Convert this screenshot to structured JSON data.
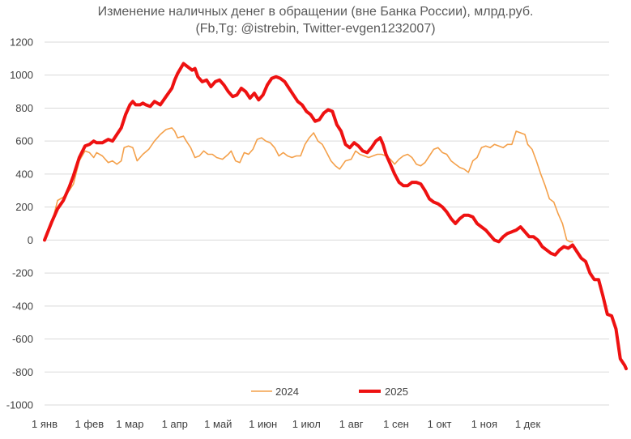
{
  "chart_data": {
    "type": "line",
    "title": "Изменение наличных денег в обращении (вне Банка России), млрд.руб.",
    "subtitle": "(Fb,Tg: @istrebin, Twitter-evgen1232007)",
    "xlabel": "",
    "ylabel": "",
    "ylim": [
      -1000,
      1200
    ],
    "yticks": [
      "1200",
      "1000",
      "800",
      "600",
      "400",
      "200",
      "0",
      "-200",
      "-400",
      "-600",
      "-800",
      "-1000"
    ],
    "xtick_labels": [
      "1 янв",
      "1 фев",
      "1 мар",
      "1 апр",
      "1 май",
      "1 июн",
      "1 июл",
      "1 авг",
      "1 сен",
      "1 окт",
      "1 ноя",
      "1 дек"
    ],
    "xtick_days": [
      0,
      31,
      59,
      90,
      120,
      151,
      181,
      212,
      243,
      273,
      304,
      334
    ],
    "xlim_days": [
      0,
      365
    ],
    "grid": "horizontal",
    "legend_position": "bottom",
    "series": [
      {
        "name": "2024",
        "color": "#F4A04A",
        "line_width": "thin",
        "points": [
          [
            0,
            0
          ],
          [
            5,
            100
          ],
          [
            9,
            240
          ],
          [
            13,
            260
          ],
          [
            17,
            300
          ],
          [
            20,
            340
          ],
          [
            24,
            480
          ],
          [
            28,
            540
          ],
          [
            31,
            530
          ],
          [
            34,
            500
          ],
          [
            36,
            530
          ],
          [
            40,
            510
          ],
          [
            44,
            470
          ],
          [
            47,
            480
          ],
          [
            50,
            460
          ],
          [
            53,
            480
          ],
          [
            55,
            560
          ],
          [
            58,
            570
          ],
          [
            61,
            560
          ],
          [
            64,
            480
          ],
          [
            66,
            500
          ],
          [
            68,
            520
          ],
          [
            72,
            550
          ],
          [
            76,
            600
          ],
          [
            80,
            640
          ],
          [
            84,
            670
          ],
          [
            88,
            680
          ],
          [
            90,
            660
          ],
          [
            92,
            620
          ],
          [
            96,
            630
          ],
          [
            98,
            600
          ],
          [
            101,
            560
          ],
          [
            104,
            500
          ],
          [
            107,
            510
          ],
          [
            110,
            540
          ],
          [
            113,
            520
          ],
          [
            116,
            520
          ],
          [
            119,
            500
          ],
          [
            123,
            490
          ],
          [
            127,
            520
          ],
          [
            129,
            540
          ],
          [
            132,
            480
          ],
          [
            135,
            470
          ],
          [
            138,
            530
          ],
          [
            141,
            520
          ],
          [
            144,
            550
          ],
          [
            147,
            610
          ],
          [
            150,
            620
          ],
          [
            153,
            600
          ],
          [
            156,
            590
          ],
          [
            159,
            560
          ],
          [
            162,
            510
          ],
          [
            165,
            530
          ],
          [
            168,
            510
          ],
          [
            171,
            500
          ],
          [
            174,
            510
          ],
          [
            177,
            510
          ],
          [
            180,
            580
          ],
          [
            183,
            620
          ],
          [
            186,
            650
          ],
          [
            189,
            600
          ],
          [
            192,
            580
          ],
          [
            195,
            530
          ],
          [
            198,
            480
          ],
          [
            201,
            450
          ],
          [
            204,
            430
          ],
          [
            208,
            480
          ],
          [
            212,
            490
          ],
          [
            215,
            540
          ],
          [
            218,
            520
          ],
          [
            221,
            510
          ],
          [
            224,
            500
          ],
          [
            227,
            510
          ],
          [
            230,
            520
          ],
          [
            233,
            520
          ],
          [
            236,
            510
          ],
          [
            239,
            490
          ],
          [
            242,
            460
          ],
          [
            245,
            490
          ],
          [
            248,
            510
          ],
          [
            251,
            520
          ],
          [
            254,
            500
          ],
          [
            257,
            460
          ],
          [
            260,
            450
          ],
          [
            263,
            470
          ],
          [
            266,
            510
          ],
          [
            269,
            550
          ],
          [
            272,
            560
          ],
          [
            275,
            530
          ],
          [
            278,
            520
          ],
          [
            281,
            480
          ],
          [
            284,
            460
          ],
          [
            287,
            440
          ],
          [
            290,
            430
          ],
          [
            293,
            410
          ],
          [
            296,
            480
          ],
          [
            299,
            500
          ],
          [
            302,
            560
          ],
          [
            305,
            570
          ],
          [
            308,
            560
          ],
          [
            311,
            580
          ],
          [
            314,
            570
          ],
          [
            317,
            560
          ],
          [
            320,
            580
          ],
          [
            323,
            580
          ],
          [
            326,
            660
          ],
          [
            329,
            650
          ],
          [
            332,
            640
          ],
          [
            334,
            580
          ],
          [
            337,
            550
          ],
          [
            340,
            480
          ],
          [
            343,
            400
          ],
          [
            346,
            330
          ],
          [
            349,
            250
          ],
          [
            352,
            230
          ],
          [
            355,
            160
          ],
          [
            358,
            100
          ],
          [
            361,
            0
          ],
          [
            363,
            -10
          ],
          [
            365,
            -10
          ]
        ]
      },
      {
        "name": "2025",
        "color": "#EE1111",
        "line_width": "thick",
        "points": [
          [
            0,
            0
          ],
          [
            5,
            110
          ],
          [
            9,
            190
          ],
          [
            13,
            240
          ],
          [
            17,
            320
          ],
          [
            20,
            390
          ],
          [
            24,
            500
          ],
          [
            28,
            570
          ],
          [
            31,
            580
          ],
          [
            34,
            600
          ],
          [
            36,
            590
          ],
          [
            40,
            590
          ],
          [
            44,
            610
          ],
          [
            47,
            600
          ],
          [
            50,
            640
          ],
          [
            53,
            680
          ],
          [
            56,
            760
          ],
          [
            59,
            820
          ],
          [
            61,
            840
          ],
          [
            63,
            820
          ],
          [
            66,
            820
          ],
          [
            68,
            830
          ],
          [
            70,
            820
          ],
          [
            73,
            810
          ],
          [
            76,
            840
          ],
          [
            80,
            820
          ],
          [
            84,
            870
          ],
          [
            88,
            920
          ],
          [
            90,
            970
          ],
          [
            92,
            1010
          ],
          [
            96,
            1070
          ],
          [
            99,
            1050
          ],
          [
            102,
            1030
          ],
          [
            104,
            1040
          ],
          [
            106,
            990
          ],
          [
            109,
            960
          ],
          [
            112,
            970
          ],
          [
            115,
            930
          ],
          [
            118,
            960
          ],
          [
            121,
            970
          ],
          [
            124,
            940
          ],
          [
            127,
            900
          ],
          [
            130,
            870
          ],
          [
            133,
            880
          ],
          [
            136,
            920
          ],
          [
            139,
            900
          ],
          [
            142,
            860
          ],
          [
            145,
            890
          ],
          [
            148,
            850
          ],
          [
            151,
            880
          ],
          [
            154,
            940
          ],
          [
            157,
            980
          ],
          [
            160,
            990
          ],
          [
            163,
            980
          ],
          [
            166,
            960
          ],
          [
            169,
            920
          ],
          [
            172,
            880
          ],
          [
            175,
            840
          ],
          [
            178,
            820
          ],
          [
            181,
            780
          ],
          [
            184,
            760
          ],
          [
            187,
            720
          ],
          [
            190,
            730
          ],
          [
            193,
            770
          ],
          [
            196,
            790
          ],
          [
            199,
            780
          ],
          [
            202,
            700
          ],
          [
            205,
            660
          ],
          [
            208,
            580
          ],
          [
            211,
            560
          ],
          [
            214,
            590
          ],
          [
            217,
            570
          ],
          [
            220,
            540
          ],
          [
            223,
            530
          ],
          [
            226,
            560
          ],
          [
            229,
            600
          ],
          [
            232,
            620
          ],
          [
            234,
            580
          ],
          [
            236,
            520
          ],
          [
            239,
            460
          ],
          [
            242,
            400
          ],
          [
            245,
            350
          ],
          [
            248,
            330
          ],
          [
            251,
            330
          ],
          [
            254,
            350
          ],
          [
            257,
            350
          ],
          [
            260,
            340
          ],
          [
            263,
            300
          ],
          [
            266,
            250
          ],
          [
            269,
            230
          ],
          [
            272,
            220
          ],
          [
            275,
            200
          ],
          [
            278,
            170
          ],
          [
            281,
            130
          ],
          [
            284,
            100
          ],
          [
            287,
            130
          ],
          [
            290,
            150
          ],
          [
            293,
            150
          ],
          [
            296,
            140
          ],
          [
            299,
            100
          ],
          [
            302,
            80
          ],
          [
            305,
            60
          ],
          [
            308,
            30
          ],
          [
            311,
            0
          ],
          [
            314,
            -10
          ],
          [
            317,
            20
          ],
          [
            320,
            40
          ],
          [
            323,
            50
          ],
          [
            326,
            60
          ],
          [
            329,
            80
          ],
          [
            332,
            50
          ],
          [
            335,
            20
          ],
          [
            338,
            20
          ],
          [
            341,
            0
          ],
          [
            344,
            -40
          ],
          [
            347,
            -60
          ],
          [
            350,
            -80
          ],
          [
            353,
            -90
          ],
          [
            356,
            -60
          ],
          [
            359,
            -40
          ],
          [
            362,
            -50
          ],
          [
            365,
            -30
          ],
          [
            368,
            -70
          ],
          [
            371,
            -110
          ],
          [
            374,
            -130
          ],
          [
            377,
            -200
          ],
          [
            380,
            -240
          ],
          [
            383,
            -240
          ],
          [
            386,
            -340
          ],
          [
            389,
            -450
          ],
          [
            392,
            -460
          ],
          [
            395,
            -540
          ],
          [
            398,
            -720
          ],
          [
            401,
            -760
          ],
          [
            402,
            -780
          ]
        ]
      }
    ]
  }
}
